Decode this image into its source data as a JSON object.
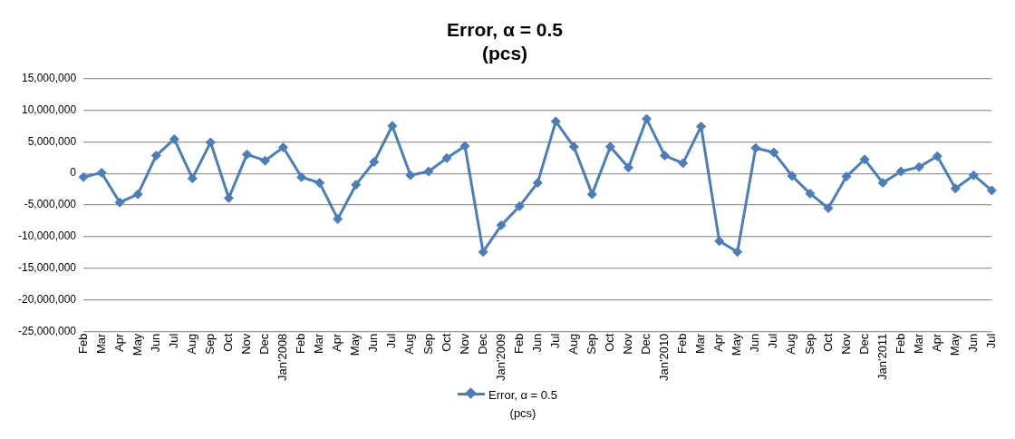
{
  "chart_data": {
    "type": "line",
    "title": "Error, α = 0.5\n(pcs)",
    "categories": [
      "Feb",
      "Mar",
      "Apr",
      "May",
      "Jun",
      "Jul",
      "Aug",
      "Sep",
      "Oct",
      "Nov",
      "Dec",
      "Jan'2008",
      "Feb",
      "Mar",
      "Apr",
      "May",
      "Jun",
      "Jul",
      "Aug",
      "Sep",
      "Oct",
      "Nov",
      "Dec",
      "Jan'2009",
      "Feb",
      "Jun",
      "Jul",
      "Aug",
      "Sep",
      "Oct",
      "Nov",
      "Dec",
      "Jan'2010",
      "Feb",
      "Mar",
      "Apr",
      "May",
      "Jun",
      "Jul",
      "Aug",
      "Sep",
      "Oct",
      "Nov",
      "Dec",
      "Jan'2011",
      "Feb",
      "Mar",
      "Apr",
      "May",
      "Jun",
      "Jul"
    ],
    "series": [
      {
        "name": "Error, α = 0.5\n(pcs)",
        "color": "#4a7ebb",
        "values": [
          -600000,
          100000,
          -4600000,
          -3300000,
          2800000,
          5400000,
          -800000,
          4900000,
          -3900000,
          3000000,
          2000000,
          4100000,
          -600000,
          -1500000,
          -7200000,
          -1800000,
          1800000,
          7500000,
          -300000,
          300000,
          2400000,
          4300000,
          -12400000,
          -8200000,
          -5200000,
          -1500000,
          8200000,
          4200000,
          -3300000,
          4200000,
          900000,
          8600000,
          2800000,
          1600000,
          7400000,
          -10700000,
          -12400000,
          4000000,
          3300000,
          -400000,
          -3200000,
          -5500000,
          -500000,
          2200000,
          -1500000,
          300000,
          1000000,
          2700000,
          -2400000,
          -300000,
          -2700000
        ]
      }
    ],
    "ylim": [
      -25000000,
      15000000
    ],
    "yticks": [
      {
        "value": -25000000,
        "label": "-25,000,000"
      },
      {
        "value": -20000000,
        "label": "-20,000,000"
      },
      {
        "value": -15000000,
        "label": "-15,000,000"
      },
      {
        "value": -10000000,
        "label": "-10,000,000"
      },
      {
        "value": -5000000,
        "label": "-5,000,000"
      },
      0,
      {
        "value": 5000000,
        "label": "5,000,000"
      },
      {
        "value": 10000000,
        "label": "10,000,000"
      },
      {
        "value": 15000000,
        "label": "15,000,000"
      }
    ],
    "grid": "y",
    "legend": "bottom",
    "marker": "diamond",
    "line_style": "solid"
  }
}
